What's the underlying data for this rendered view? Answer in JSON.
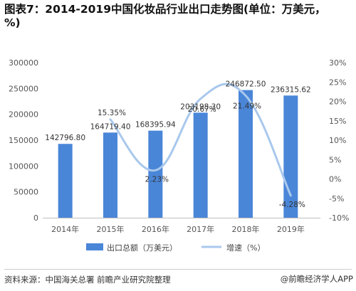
{
  "title": "图表7：2014-2019中国化妆品行业出口走势图(单位：万美元，%)",
  "source": "资料来源：中国海关总署 前瞻产业研究院整理",
  "brand": "@前瞻经济学人APP",
  "chart_data": {
    "type": "bar",
    "categories": [
      "2014年",
      "2015年",
      "2016年",
      "2017年",
      "2018年",
      "2019年"
    ],
    "series": [
      {
        "name": "出口总额（万美元）",
        "type": "bar",
        "axis": "left",
        "values": [
          142796.8,
          164719.4,
          168395.94,
          203198.3,
          246872.5,
          236315.62
        ],
        "labels": [
          "142796.80",
          "164719.40",
          "168395.94",
          "203198.30",
          "246872.50",
          "236315.62"
        ],
        "color": "#4a86d8"
      },
      {
        "name": "增速（%）",
        "type": "line",
        "axis": "right",
        "values": [
          null,
          15.35,
          2.23,
          20.67,
          21.49,
          -4.28
        ],
        "labels": [
          "",
          "15.35%",
          "2.23%",
          "20.67%",
          "21.49%",
          "-4.28%"
        ],
        "color": "#a9c8ec"
      }
    ],
    "yleft": {
      "ylim": [
        0,
        300000
      ],
      "ticks": [
        "0",
        "50000",
        "100000",
        "150000",
        "200000",
        "250000",
        "300000"
      ]
    },
    "yright": {
      "ylim": [
        -10,
        30
      ],
      "ticks": [
        "-10%",
        "-5%",
        "0%",
        "5%",
        "10%",
        "15%",
        "20%",
        "25%",
        "30%"
      ]
    },
    "grid": false,
    "legend_position": "bottom"
  }
}
